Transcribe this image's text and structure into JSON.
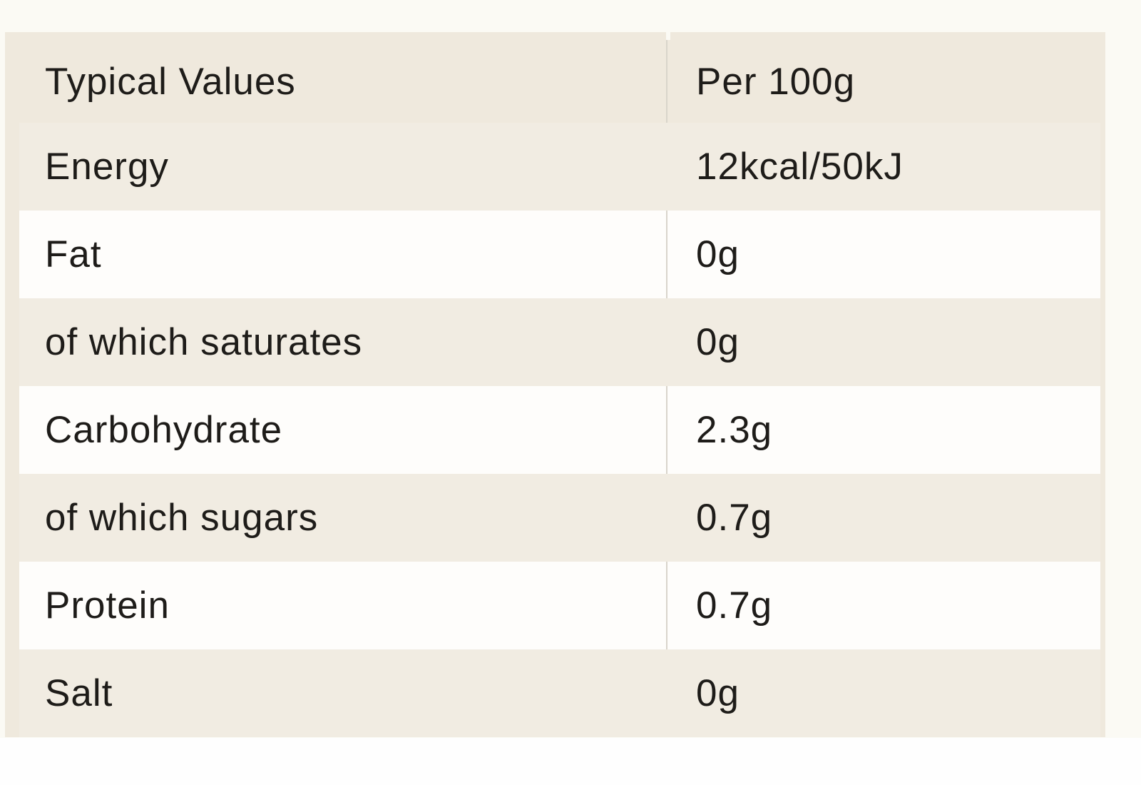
{
  "table": {
    "header": {
      "label": "Typical Values",
      "value": "Per 100g"
    },
    "rows": [
      {
        "label": "Energy",
        "value": "12kcal/50kJ"
      },
      {
        "label": "Fat",
        "value": "0g"
      },
      {
        "label": "of which saturates",
        "value": "0g"
      },
      {
        "label": "Carbohydrate",
        "value": "2.3g"
      },
      {
        "label": "of which sugars",
        "value": "0.7g"
      },
      {
        "label": "Protein",
        "value": "0.7g"
      },
      {
        "label": "Salt",
        "value": "0g"
      }
    ],
    "colors": {
      "cream_row": "#f1ece2",
      "white_row": "#fefdfb",
      "table_border": "#efe9dd",
      "column_divider": "#d9d5cb",
      "text": "#1e1c19",
      "page_background": "#fbfaf4"
    }
  },
  "chart_data": {
    "type": "table",
    "title": "",
    "columns": [
      "Typical Values",
      "Per 100g"
    ],
    "rows": [
      [
        "Energy",
        "12kcal/50kJ"
      ],
      [
        "Fat",
        "0g"
      ],
      [
        "of which saturates",
        "0g"
      ],
      [
        "Carbohydrate",
        "2.3g"
      ],
      [
        "of which sugars",
        "0.7g"
      ],
      [
        "Protein",
        "0.7g"
      ],
      [
        "Salt",
        "0g"
      ]
    ]
  }
}
